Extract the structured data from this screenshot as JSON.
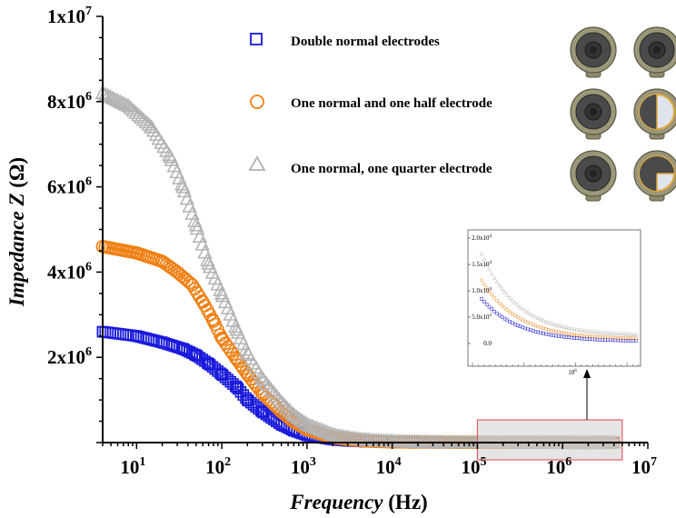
{
  "chart_data": {
    "type": "scatter",
    "title": "",
    "xlabel_italic": "Frequency",
    "xlabel_unit": "(Hz)",
    "ylabel_italic": "Impedance Z",
    "ylabel_unit": "(Ω)",
    "x_scale": "log",
    "xlim": [
      4,
      10000000
    ],
    "ylim": [
      0,
      10000000
    ],
    "x_ticks": [
      {
        "value": 10,
        "base": "10",
        "exp": "1"
      },
      {
        "value": 100,
        "base": "10",
        "exp": "2"
      },
      {
        "value": 1000,
        "base": "10",
        "exp": "3"
      },
      {
        "value": 10000,
        "base": "10",
        "exp": "4"
      },
      {
        "value": 100000,
        "base": "10",
        "exp": "5"
      },
      {
        "value": 1000000,
        "base": "10",
        "exp": "6"
      },
      {
        "value": 10000000,
        "base": "10",
        "exp": "7"
      }
    ],
    "y_ticks": [
      {
        "value": 2000000,
        "base": "2x10",
        "exp": "6"
      },
      {
        "value": 4000000,
        "base": "4x10",
        "exp": "6"
      },
      {
        "value": 6000000,
        "base": "6x10",
        "exp": "6"
      },
      {
        "value": 8000000,
        "base": "8x10",
        "exp": "6"
      },
      {
        "value": 10000000,
        "base": "1x10",
        "exp": "7"
      }
    ],
    "grid": false,
    "legend_position": "top-right",
    "series": [
      {
        "name": "Double normal electrodes",
        "marker": "square",
        "color": "#1a1adc",
        "x": [
          4,
          10,
          20,
          35,
          50,
          70,
          100,
          150,
          200,
          300,
          500,
          700,
          1000,
          2000,
          3000,
          5000,
          10000,
          100000,
          1000000,
          4000000
        ],
        "values": [
          2600000,
          2500000,
          2350000,
          2200000,
          2050000,
          1850000,
          1600000,
          1300000,
          1000000,
          720000,
          420000,
          280000,
          170000,
          70000,
          40000,
          20000,
          10000,
          3000,
          1500,
          1000
        ]
      },
      {
        "name": "One normal and one half electrode",
        "marker": "circle",
        "color": "#f07f12",
        "x": [
          4,
          10,
          20,
          30,
          45,
          60,
          80,
          100,
          150,
          200,
          300,
          500,
          700,
          1000,
          2000,
          3000,
          5000,
          10000,
          100000,
          1000000,
          4000000
        ],
        "values": [
          4600000,
          4450000,
          4250000,
          4000000,
          3700000,
          3300000,
          2850000,
          2450000,
          1950000,
          1600000,
          1150000,
          720000,
          480000,
          300000,
          120000,
          70000,
          35000,
          15000,
          4000,
          2000,
          1500
        ]
      },
      {
        "name": "One normal, one quarter electrode",
        "marker": "triangle",
        "color": "#b3b3b3",
        "x": [
          4,
          8,
          15,
          25,
          35,
          50,
          70,
          100,
          150,
          200,
          300,
          500,
          700,
          1000,
          2000,
          3000,
          5000,
          10000,
          30000,
          100000,
          1000000,
          4000000
        ],
        "values": [
          8200000,
          7900000,
          7400000,
          6700000,
          6000000,
          5100000,
          4200000,
          3500000,
          2650000,
          2100000,
          1500000,
          950000,
          650000,
          430000,
          190000,
          120000,
          65000,
          30000,
          12000,
          5000,
          2500,
          1800
        ]
      }
    ],
    "annotations": {
      "zoom_region_x": [
        100000,
        5000000
      ],
      "inset": {
        "y_ticks": [
          "2.0x10",
          "1.5x10",
          "1.0x10",
          "5.0x10",
          "0.0"
        ],
        "y_tick_exps": [
          "4",
          "4",
          "4",
          "3",
          ""
        ],
        "x_tick": "10",
        "x_tick_exp": "6"
      }
    }
  }
}
